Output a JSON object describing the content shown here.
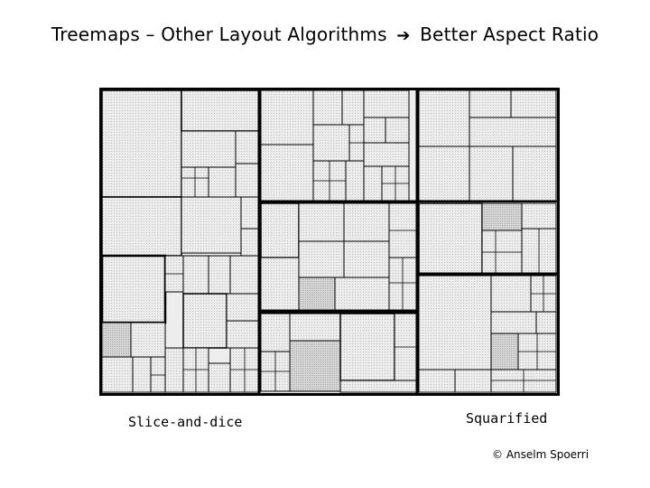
{
  "title": {
    "left": "Treemaps – Other Layout Algorithms",
    "arrow": "➔",
    "right": "Better Aspect Ratio"
  },
  "captions": {
    "left": "Slice-and-dice",
    "right": "Squarified"
  },
  "credit": "© Anselm Spoerri",
  "colors": {
    "border": "#000000",
    "fill_light": "#f2f2f2",
    "fill_mid": "#e3e3e3",
    "fill_dark": "#cfcfcf"
  }
}
